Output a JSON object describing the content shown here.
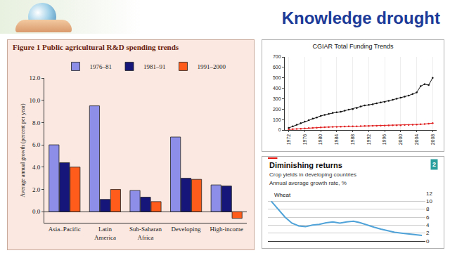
{
  "header": {
    "title": "Knowledge drought"
  },
  "chart_data": [
    {
      "type": "bar",
      "title": "Figure 1 Public agricultural R&D spending trends",
      "ylabel": "Average annual growth (percent per year)",
      "categories": [
        "Asia–Pacific",
        "Latin America",
        "Sub-Saharan Africa",
        "Developing",
        "High-income"
      ],
      "series": [
        {
          "name": "1976–81",
          "color": "#8c8ee8",
          "values": [
            6.0,
            9.5,
            1.9,
            6.7,
            2.4
          ]
        },
        {
          "name": "1981–91",
          "color": "#16167a",
          "values": [
            4.4,
            1.1,
            1.3,
            3.0,
            2.3
          ]
        },
        {
          "name": "1991–2000",
          "color": "#ff5b1a",
          "values": [
            4.0,
            2.0,
            0.9,
            2.9,
            -0.6
          ]
        }
      ],
      "ylim": [
        -1,
        12
      ],
      "yticks": [
        {
          "value": 0,
          "label": "0.0"
        },
        {
          "value": 2,
          "label": "2.0"
        },
        {
          "value": 4,
          "label": "4.0"
        },
        {
          "value": 6,
          "label": "6.0"
        },
        {
          "value": 8,
          "label": "8.0"
        },
        {
          "value": 10,
          "label": "10.0"
        },
        {
          "value": 12,
          "label": "12.0"
        }
      ],
      "grid": false,
      "legend": "top"
    },
    {
      "type": "line",
      "title": "CGIAR Total Funding Trends",
      "x": [
        1972,
        1973,
        1974,
        1975,
        1976,
        1977,
        1978,
        1979,
        1980,
        1981,
        1982,
        1983,
        1984,
        1985,
        1986,
        1987,
        1988,
        1989,
        1990,
        1991,
        1992,
        1993,
        1994,
        1995,
        1996,
        1997,
        1998,
        1999,
        2000,
        2001,
        2002,
        2003,
        2004,
        2005,
        2006,
        2007,
        2008
      ],
      "series": [
        {
          "color": "#111111",
          "marker": "circle",
          "values": [
            20,
            35,
            50,
            65,
            80,
            95,
            110,
            120,
            135,
            145,
            155,
            165,
            170,
            175,
            185,
            195,
            200,
            210,
            225,
            235,
            240,
            245,
            255,
            265,
            270,
            280,
            290,
            300,
            310,
            320,
            330,
            345,
            360,
            420,
            440,
            430,
            500
          ]
        },
        {
          "color": "#e02020",
          "marker": "circle",
          "values": [
            5,
            8,
            10,
            12,
            15,
            18,
            20,
            22,
            25,
            27,
            28,
            30,
            30,
            32,
            33,
            35,
            35,
            36,
            37,
            38,
            38,
            40,
            40,
            42,
            42,
            44,
            45,
            45,
            46,
            48,
            48,
            50,
            52,
            55,
            58,
            60,
            65
          ]
        }
      ],
      "xlim": [
        1971,
        2009
      ],
      "xticks": [
        1972,
        1976,
        1980,
        1984,
        1988,
        1992,
        1996,
        2000,
        2004,
        2008
      ],
      "ylim": [
        0,
        700
      ],
      "yticks": [
        0,
        100,
        200,
        300,
        400,
        500,
        600,
        700
      ],
      "grid": false
    },
    {
      "type": "line",
      "title": "Diminishing returns",
      "subtitle": "Crop yields in developing countries",
      "ylabel": "Annual average growth rate, %",
      "figure_number": 2,
      "x": [
        1962,
        1964,
        1966,
        1968,
        1970,
        1972,
        1974,
        1976,
        1978,
        1980,
        1982,
        1984,
        1986,
        1988,
        1990,
        1992,
        1994,
        1996,
        1998,
        2000,
        2002,
        2004,
        2006
      ],
      "series": [
        {
          "name": "Wheat",
          "color": "#4fa3d8",
          "values": [
            10,
            8,
            6,
            4.5,
            3.8,
            3.6,
            4,
            4.2,
            4.6,
            4.8,
            4.5,
            4.8,
            5,
            4.6,
            4,
            3.5,
            3,
            2.6,
            2.2,
            2,
            1.8,
            1.5,
            1.4
          ]
        }
      ],
      "xlim": [
        1961,
        2007
      ],
      "ylim": [
        0,
        12
      ],
      "yticks": [
        0,
        2,
        4,
        6,
        8,
        10,
        12
      ],
      "grid": true,
      "tick_labels": "y"
    }
  ]
}
